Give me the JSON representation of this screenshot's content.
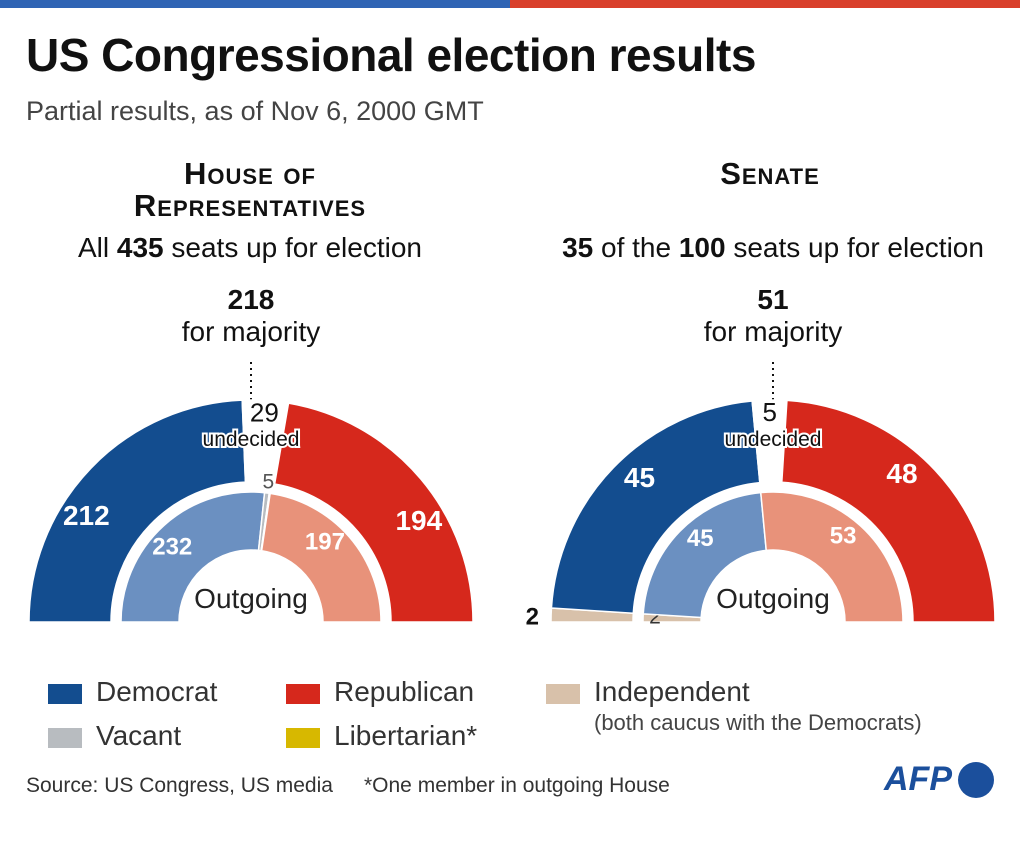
{
  "header": {
    "title": "US Congressional election results",
    "subtitle": "Partial results, as of Nov 6, 2000 GMT"
  },
  "colors": {
    "democrat": "#134d8f",
    "republican": "#d6281c",
    "democrat_outgoing": "#6b90c1",
    "republican_outgoing": "#e8927a",
    "independent": "#d8c1aa",
    "vacant": "#b8bcc0",
    "libertarian": "#d7b800",
    "undecided": "#ffffff"
  },
  "house": {
    "heading_line1": "House of",
    "heading_line2": "Representatives",
    "sub_pre": "All ",
    "sub_total": "435",
    "sub_post": " seats up for election",
    "majority_number": "218",
    "majority_text": "for majority",
    "undecided_label": "undecided",
    "outgoing_label": "Outgoing"
  },
  "senate": {
    "heading": "Senate",
    "sub_up": "35",
    "sub_mid": " of the ",
    "sub_total": "100",
    "sub_post": " seats up for election",
    "majority_number": "51",
    "majority_text": "for majority",
    "undecided_label": "undecided",
    "outgoing_label": "Outgoing"
  },
  "chart_data": [
    {
      "type": "pie",
      "chamber": "House of Representatives",
      "ring": "current",
      "total": 435,
      "majority": 218,
      "slices": [
        {
          "party": "Democrat",
          "value": 212,
          "label": "212"
        },
        {
          "party": "Undecided",
          "value": 29,
          "label": "29"
        },
        {
          "party": "Republican",
          "value": 194,
          "label": "194"
        }
      ]
    },
    {
      "type": "pie",
      "chamber": "House of Representatives",
      "ring": "outgoing",
      "total": 435,
      "slices": [
        {
          "party": "Democrat",
          "value": 232,
          "label": "232"
        },
        {
          "party": "Vacant",
          "value": 5,
          "label": "5"
        },
        {
          "party": "Libertarian",
          "value": 1,
          "label": ""
        },
        {
          "party": "Republican",
          "value": 197,
          "label": "197"
        }
      ]
    },
    {
      "type": "pie",
      "chamber": "Senate",
      "ring": "current",
      "total": 100,
      "majority": 51,
      "slices": [
        {
          "party": "Independent",
          "value": 2,
          "label": "2"
        },
        {
          "party": "Democrat",
          "value": 45,
          "label": "45"
        },
        {
          "party": "Undecided",
          "value": 5,
          "label": "5"
        },
        {
          "party": "Republican",
          "value": 48,
          "label": "48"
        }
      ]
    },
    {
      "type": "pie",
      "chamber": "Senate",
      "ring": "outgoing",
      "total": 100,
      "slices": [
        {
          "party": "Independent",
          "value": 2,
          "label": "2"
        },
        {
          "party": "Democrat",
          "value": 45,
          "label": "45"
        },
        {
          "party": "Republican",
          "value": 53,
          "label": "53"
        }
      ]
    }
  ],
  "legend": {
    "democrat": "Democrat",
    "republican": "Republican",
    "independent": "Independent",
    "independent_note": "(both caucus with the Democrats)",
    "vacant": "Vacant",
    "libertarian": "Libertarian*"
  },
  "footer": {
    "source": "Source: US Congress, US media",
    "note": "*One member in outgoing House",
    "logo_text": "AFP"
  }
}
